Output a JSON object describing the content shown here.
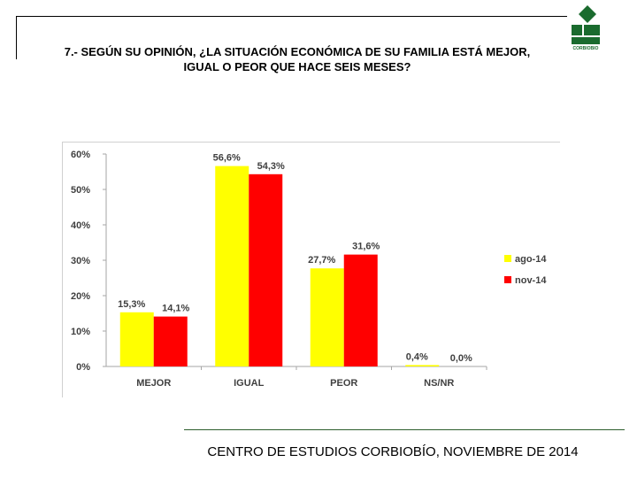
{
  "header": {
    "title_line1": "7.- SEGÚN SU OPINIÓN, ¿LA SITUACIÓN ECONÓMICA DE SU FAMILIA ESTÁ MEJOR,",
    "title_line2": "IGUAL O PEOR QUE HACE SEIS MESES?"
  },
  "logo": {
    "text": "CORBIOBIO",
    "icon": "corbiobio-logo-icon",
    "color": "#1a6b2e"
  },
  "footer": {
    "text": "CENTRO DE ESTUDIOS CORBIOBÍO, NOVIEMBRE DE 2014"
  },
  "chart_data": {
    "type": "bar",
    "categories": [
      "MEJOR",
      "IGUAL",
      "PEOR",
      "NS/NR"
    ],
    "series": [
      {
        "name": "ago-14",
        "color": "#ffff00",
        "values": [
          15.3,
          56.6,
          27.7,
          0.4
        ],
        "labels": [
          "15,3%",
          "56,6%",
          "27,7%",
          "0,4%"
        ]
      },
      {
        "name": "nov-14",
        "color": "#ff0000",
        "values": [
          14.1,
          54.3,
          31.6,
          0.0
        ],
        "labels": [
          "14,1%",
          "54,3%",
          "31,6%",
          "0,0%"
        ]
      }
    ],
    "yticks": [
      "0%",
      "10%",
      "20%",
      "30%",
      "40%",
      "50%",
      "60%"
    ],
    "ylim": [
      0,
      60
    ],
    "grid": false,
    "legend": "right"
  }
}
